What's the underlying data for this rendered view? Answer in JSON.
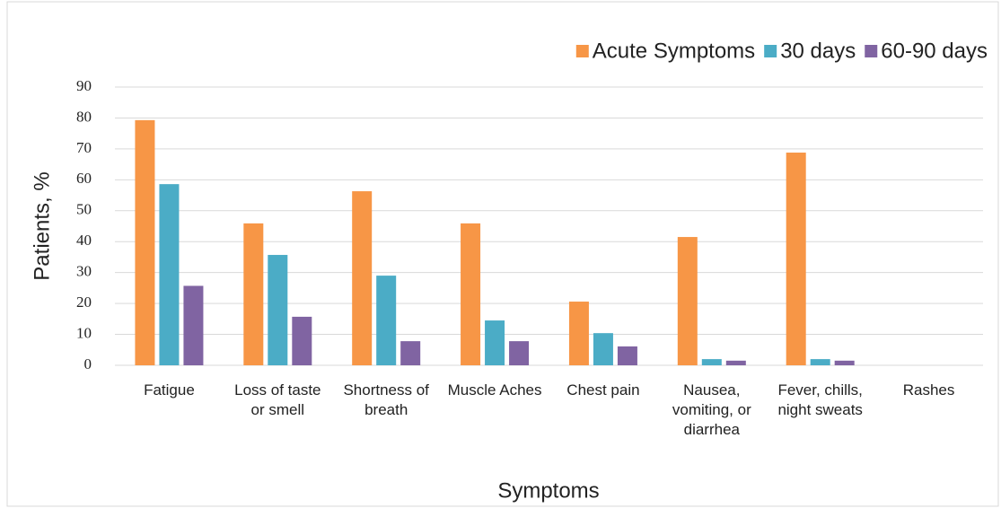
{
  "chart_data": {
    "type": "bar",
    "x_label": "Symptoms",
    "y_label": "Patients, %",
    "categories": [
      "Fatigue",
      "Loss of taste or smell",
      "Shortness of breath",
      "Muscle Aches",
      "Chest pain",
      "Nausea, vomiting, or diarrhea",
      "Fever, chills, night sweats",
      "Rashes"
    ],
    "series": [
      {
        "name": "Acute Symptoms",
        "color": "#f79646",
        "values": [
          79.3,
          45.9,
          56.3,
          45.9,
          20.6,
          41.5,
          68.8,
          0
        ]
      },
      {
        "name": "30 days",
        "color": "#4bacc6",
        "values": [
          58.6,
          35.7,
          29,
          14.5,
          10.4,
          2,
          2,
          0
        ]
      },
      {
        "name": "60-90 days",
        "color": "#8064a2",
        "values": [
          25.7,
          15.7,
          7.8,
          7.8,
          6.1,
          1.5,
          1.5,
          0
        ]
      }
    ],
    "ylim": [
      0,
      90
    ],
    "yticks": [
      0,
      10,
      20,
      30,
      40,
      50,
      60,
      70,
      80,
      90
    ],
    "grid": true,
    "legend": "top-right"
  }
}
